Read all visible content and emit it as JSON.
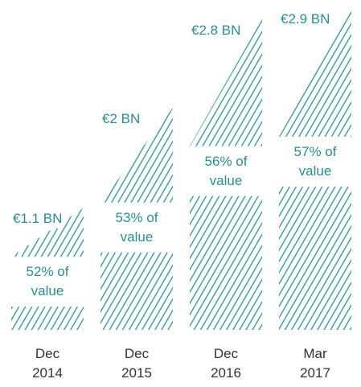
{
  "chart_data": {
    "type": "bar",
    "categories": [
      "Dec 2014",
      "Dec 2015",
      "Dec 2016",
      "Mar 2017"
    ],
    "values": [
      1.1,
      2,
      2.8,
      2.9
    ],
    "value_labels": [
      "€1.1 BN",
      "€2 BN",
      "€2.8 BN",
      "€2.9 BN"
    ],
    "shares": [
      52,
      53,
      56,
      57
    ],
    "share_labels": [
      "52% of value",
      "53% of value",
      "56% of value",
      "57% of value"
    ],
    "color": "#2b8e8e"
  }
}
